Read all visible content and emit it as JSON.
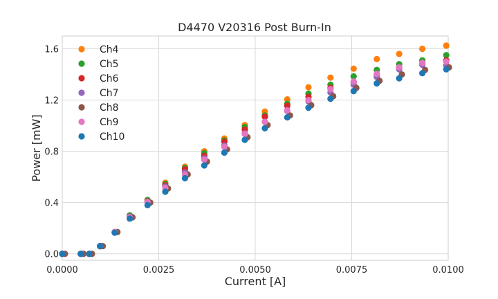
{
  "chart_data": {
    "type": "scatter",
    "title": "D4470 V20316 Post Burn-In",
    "xlabel": "Current [A]",
    "ylabel": "Power [mW]",
    "xlim": [
      0,
      0.01
    ],
    "ylim": [
      -0.05,
      1.7
    ],
    "xticks": [
      0,
      0.0025,
      0.005,
      0.0075,
      0.01
    ],
    "xtick_labels": [
      "0.0000",
      "0.0025",
      "0.0050",
      "0.0075",
      "0.0100"
    ],
    "yticks": [
      0,
      0.4,
      0.8,
      1.2,
      1.6
    ],
    "ytick_labels": [
      "0.0",
      "0.4",
      "0.8",
      "1.2",
      "1.6"
    ],
    "grid": true,
    "legend_position": "top-left",
    "x": [
      0,
      0.00048,
      0.0007,
      0.00098,
      0.00136,
      0.00175,
      0.00221,
      0.00267,
      0.00318,
      0.00368,
      0.0042,
      0.00473,
      0.00525,
      0.00583,
      0.00638,
      0.00695,
      0.00755,
      0.00815,
      0.00873,
      0.00933,
      0.00995
    ],
    "series": [
      {
        "name": "Ch4",
        "color": "#ff7f0e",
        "dx": 0,
        "values": [
          0,
          0,
          0,
          0.06,
          0.17,
          0.3,
          0.42,
          0.555,
          0.68,
          0.8,
          0.9,
          1.005,
          1.11,
          1.205,
          1.3,
          1.375,
          1.445,
          1.52,
          1.56,
          1.6,
          1.625
        ]
      },
      {
        "name": "Ch5",
        "color": "#2ca02c",
        "dx": 0,
        "values": [
          0,
          0,
          0,
          0.06,
          0.17,
          0.3,
          0.42,
          0.545,
          0.67,
          0.785,
          0.885,
          0.99,
          1.08,
          1.17,
          1.25,
          1.32,
          1.385,
          1.435,
          1.48,
          1.51,
          1.55
        ]
      },
      {
        "name": "Ch6",
        "color": "#d62728",
        "dx": 0,
        "values": [
          0,
          0,
          0,
          0.06,
          0.17,
          0.29,
          0.41,
          0.535,
          0.66,
          0.765,
          0.875,
          0.97,
          1.07,
          1.155,
          1.225,
          1.295,
          1.34,
          1.4,
          1.455,
          1.49,
          1.51
        ]
      },
      {
        "name": "Ch7",
        "color": "#9467bd",
        "dx": 0,
        "values": [
          0,
          0,
          0,
          0.06,
          0.17,
          0.29,
          0.405,
          0.525,
          0.635,
          0.745,
          0.845,
          0.94,
          1.03,
          1.115,
          1.19,
          1.26,
          1.32,
          1.38,
          1.44,
          1.475,
          1.47
        ]
      },
      {
        "name": "Ch8",
        "color": "#8c564b",
        "dx": 7e-05,
        "values": [
          0,
          0,
          0,
          0.06,
          0.17,
          0.285,
          0.4,
          0.51,
          0.62,
          0.72,
          0.815,
          0.91,
          1.005,
          1.08,
          1.16,
          1.23,
          1.295,
          1.35,
          1.4,
          1.435,
          1.455
        ]
      },
      {
        "name": "Ch9",
        "color": "#e377c2",
        "dx": 0,
        "values": [
          0,
          0,
          0,
          0.06,
          0.17,
          0.285,
          0.405,
          0.515,
          0.62,
          0.735,
          0.835,
          0.935,
          1.03,
          1.12,
          1.2,
          1.285,
          1.345,
          1.405,
          1.455,
          1.49,
          1.5
        ]
      },
      {
        "name": "Ch10",
        "color": "#1f77b4",
        "dx": 0,
        "values": [
          0,
          0,
          0,
          0.06,
          0.165,
          0.275,
          0.38,
          0.485,
          0.59,
          0.69,
          0.79,
          0.89,
          0.98,
          1.065,
          1.14,
          1.21,
          1.27,
          1.33,
          1.37,
          1.41,
          1.44
        ]
      }
    ]
  }
}
